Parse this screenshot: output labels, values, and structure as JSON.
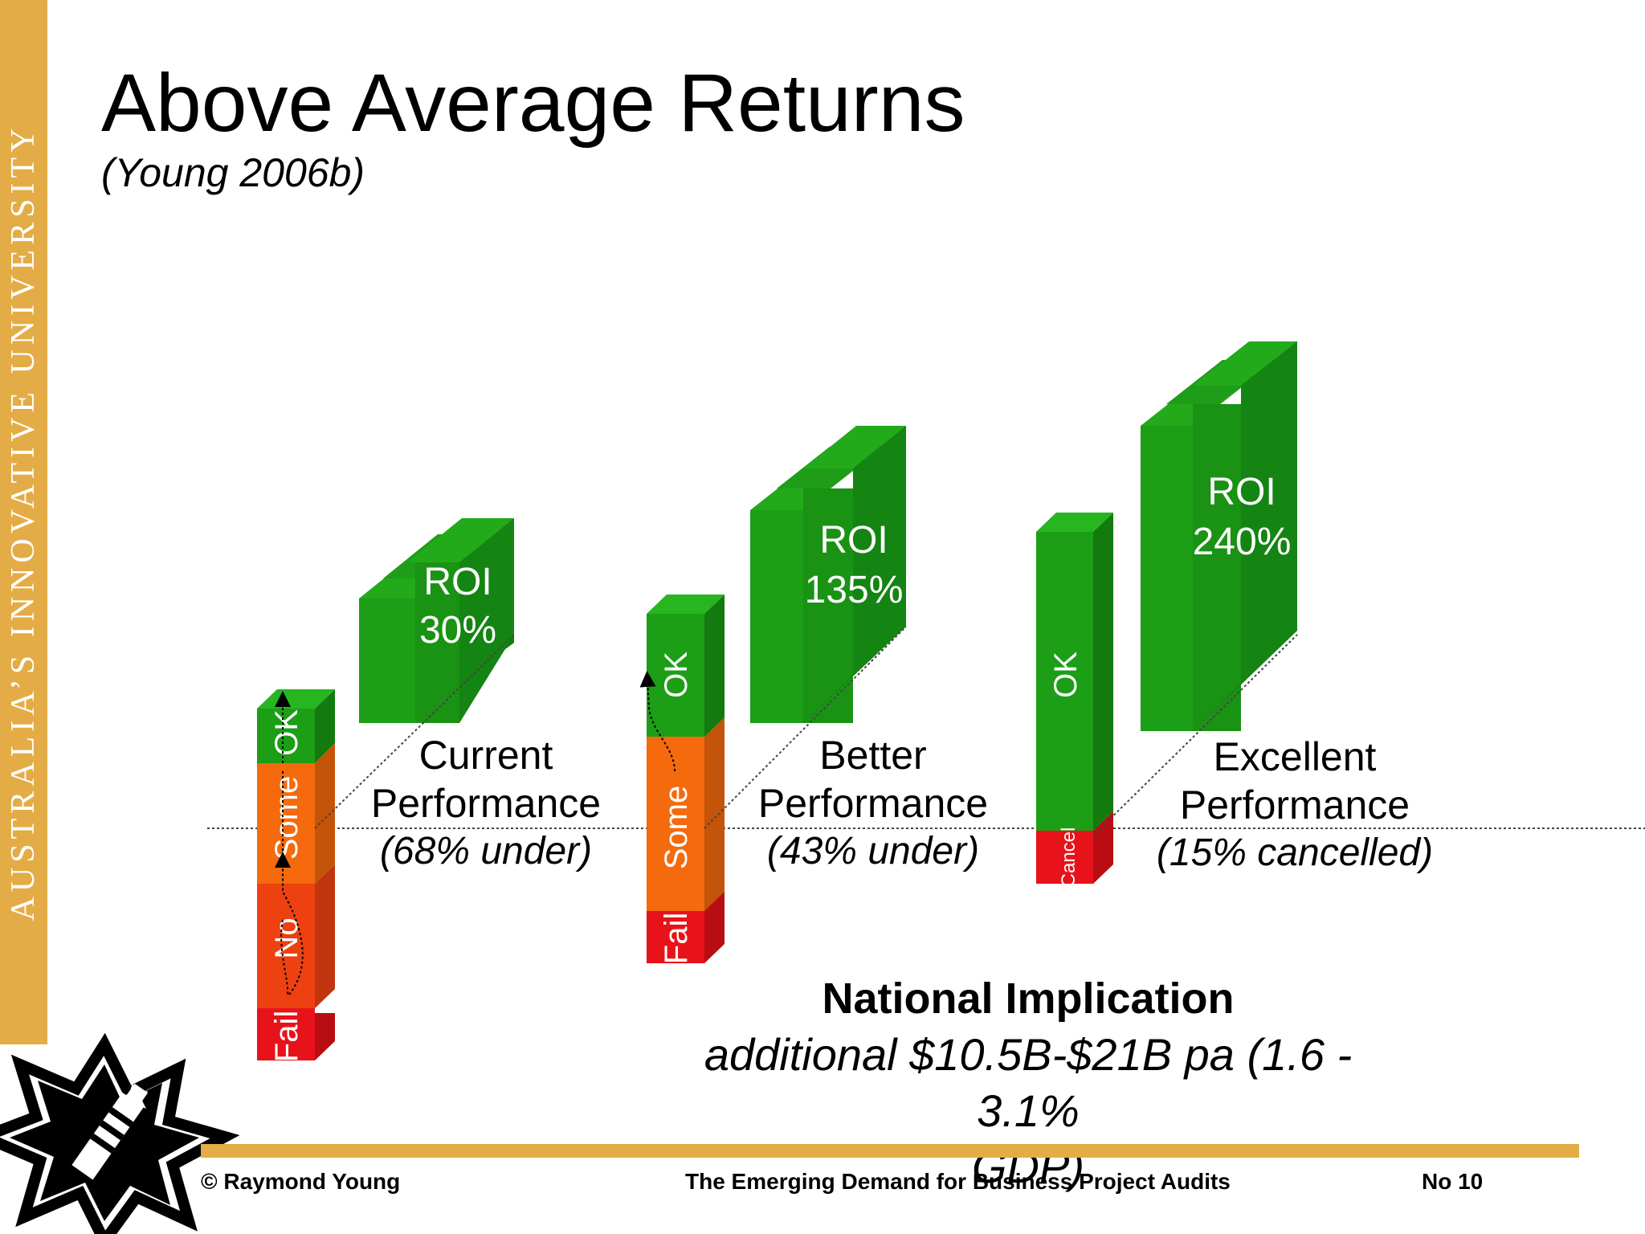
{
  "slide": {
    "title": "Above Average Returns",
    "subtitle": "(Young 2006b)",
    "sidebar_text": "AUSTRALIA’S INNOVATIVE UNIVERSITY"
  },
  "groups": [
    {
      "label_line1": "Current",
      "label_line2": "Performance",
      "label_note": "(68% under)",
      "roi_label": "ROI",
      "roi_value": "30%",
      "segments": [
        {
          "label": "Fail",
          "color": "#e8121a"
        },
        {
          "label": "No",
          "color": "#ee4112"
        },
        {
          "label": "Some",
          "color": "#f46a0c"
        },
        {
          "label": "OK",
          "color": "#1c9e16"
        }
      ]
    },
    {
      "label_line1": "Better",
      "label_line2": "Performance",
      "label_note": "(43% under)",
      "roi_label": "ROI",
      "roi_value": "135%",
      "segments": [
        {
          "label": "Fail",
          "color": "#e8121a"
        },
        {
          "label": "Some",
          "color": "#f46a0c"
        },
        {
          "label": "OK",
          "color": "#1c9e16"
        }
      ]
    },
    {
      "label_line1": "Excellent",
      "label_line2": "Performance",
      "label_note": "(15% cancelled)",
      "roi_label": "ROI",
      "roi_value": "240%",
      "segments": [
        {
          "label": "Cancel",
          "color": "#e8121a"
        },
        {
          "label": "OK",
          "color": "#1c9e16"
        }
      ]
    }
  ],
  "national": {
    "heading": "National Implication",
    "line1": "additional $10.5B-$21B pa (1.6 - 3.1%",
    "line2": "GDP)"
  },
  "footer": {
    "author": "© Raymond Young",
    "talk_title": "The Emerging Demand for Business Project Audits",
    "slide_number": "No 10"
  },
  "colors": {
    "gold": "#e3ac46",
    "green": "#1c9e16",
    "orange": "#f46a0c",
    "red": "#e8121a"
  }
}
